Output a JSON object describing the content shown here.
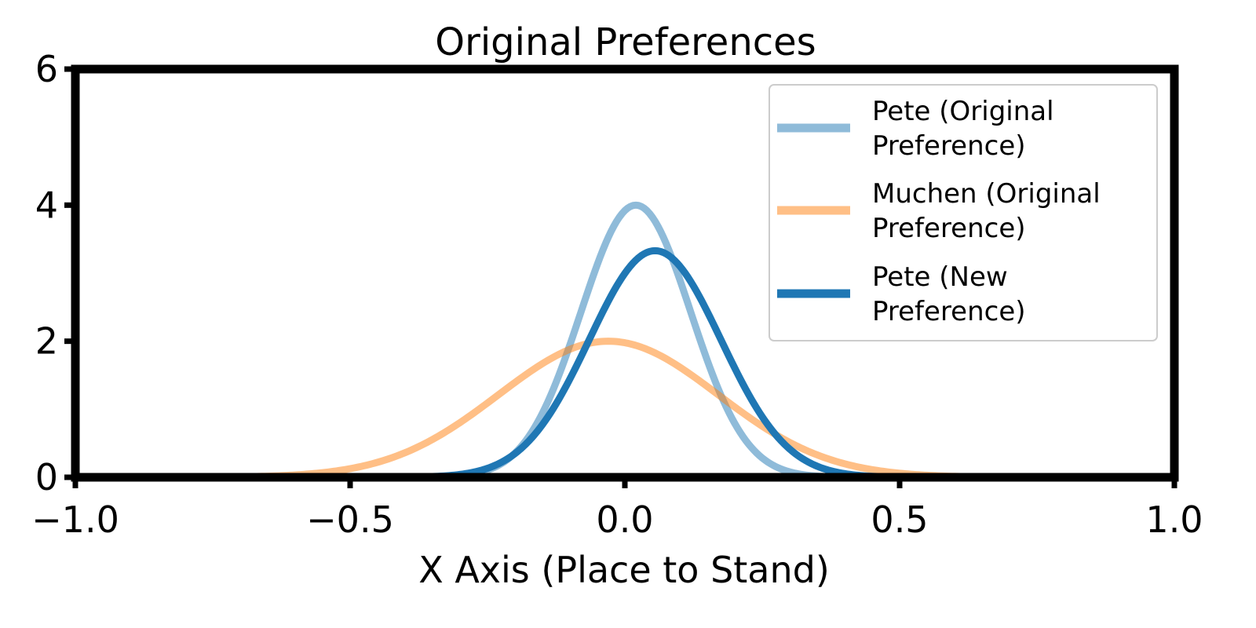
{
  "chart_data": {
    "type": "line",
    "title": "Original Preferences",
    "xlabel": "X Axis (Place to Stand)",
    "ylabel": "",
    "xlim": [
      -1.0,
      1.0
    ],
    "ylim": [
      0,
      6
    ],
    "xticks": [
      -1.0,
      -0.5,
      0.0,
      0.5,
      1.0
    ],
    "xtick_labels": [
      "−1.0",
      "−0.5",
      "0.0",
      "0.5",
      "1.0"
    ],
    "yticks": [
      0,
      2,
      4,
      6
    ],
    "ytick_labels": [
      "0",
      "2",
      "4",
      "6"
    ],
    "grid": false,
    "legend_position": "top-right",
    "series": [
      {
        "name": "Pete (Original\nPreference)",
        "legend_lines": [
          "Pete (Original",
          "Preference)"
        ],
        "color": "#1f77b4",
        "opacity": 0.5,
        "mean": 0.02,
        "std": 0.1,
        "peak": 4.0,
        "x": [
          -1.0,
          -0.5,
          -0.3,
          -0.2,
          -0.1,
          -0.05,
          0.0,
          0.02,
          0.05,
          0.1,
          0.2,
          0.3,
          0.5,
          1.0
        ],
        "y": [
          0.0,
          0.0,
          0.04,
          0.39,
          1.95,
          2.94,
          3.92,
          3.99,
          3.82,
          2.9,
          0.79,
          0.08,
          0.0,
          0.0
        ]
      },
      {
        "name": "Muchen (Original\nPreference)",
        "legend_lines": [
          "Muchen (Original",
          "Preference)"
        ],
        "color": "#ff7f0e",
        "opacity": 0.5,
        "mean": -0.03,
        "std": 0.2,
        "peak": 2.0,
        "x": [
          -1.0,
          -0.6,
          -0.4,
          -0.2,
          -0.03,
          0.1,
          0.2,
          0.4,
          0.6,
          1.0
        ],
        "y": [
          0.0,
          0.03,
          0.36,
          1.31,
          2.0,
          1.62,
          1.03,
          0.36,
          0.05,
          0.0
        ]
      },
      {
        "name": "Pete (New\nPreference)",
        "legend_lines": [
          "Pete (New",
          "Preference)"
        ],
        "color": "#1f77b4",
        "opacity": 1.0,
        "mean": 0.055,
        "std": 0.12,
        "peak": 3.33,
        "x": [
          -1.0,
          -0.5,
          -0.3,
          -0.2,
          -0.1,
          0.0,
          0.055,
          0.1,
          0.2,
          0.3,
          0.5,
          1.0
        ],
        "y": [
          0.0,
          0.0,
          0.04,
          0.31,
          1.29,
          2.99,
          3.33,
          3.1,
          1.6,
          0.4,
          0.0,
          0.0
        ]
      }
    ]
  }
}
